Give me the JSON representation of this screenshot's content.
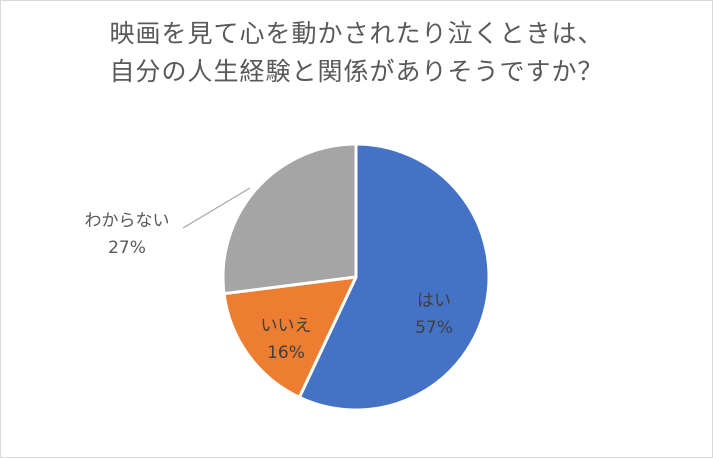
{
  "chart_data": {
    "type": "pie",
    "title_lines": [
      "映画を見て心を動かされたり泣くときは、",
      "自分の人生経験と関係がありそうですか？"
    ],
    "slices": [
      {
        "label": "はい",
        "value": 57,
        "display": "57%",
        "color": "#4472C4"
      },
      {
        "label": "いいえ",
        "value": 16,
        "display": "16%",
        "color": "#ED7D31"
      },
      {
        "label": "わからない",
        "value": 27,
        "display": "27%",
        "color": "#A5A5A5"
      }
    ],
    "legend": "none"
  }
}
